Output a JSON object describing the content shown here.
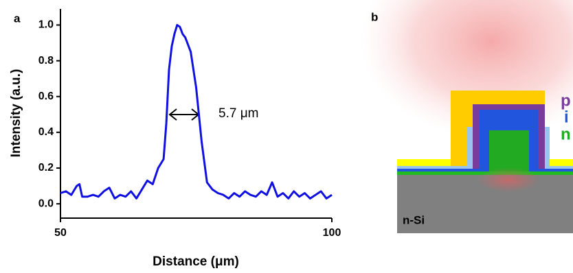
{
  "chart_data": {
    "type": "line",
    "panel_label": "a",
    "x_label": "Distance (μm)",
    "y_label": "Intensity (a.u.)",
    "annotation": "5.7 μm",
    "x": [
      50,
      51,
      52,
      53,
      53.5,
      54,
      55,
      56,
      57,
      58,
      59,
      60,
      61,
      62,
      63,
      64,
      65,
      66,
      67,
      68,
      69,
      69.5,
      70,
      70.5,
      71,
      71.5,
      72,
      72.5,
      73,
      74,
      75,
      76,
      77,
      78,
      79,
      80,
      81,
      82,
      83,
      84,
      85,
      86,
      87,
      88,
      89,
      90,
      91,
      92,
      93,
      94,
      95,
      96,
      97,
      98,
      99,
      100
    ],
    "series": [
      {
        "color": "#1010e0",
        "values": [
          0.06,
          0.07,
          0.05,
          0.1,
          0.11,
          0.04,
          0.04,
          0.05,
          0.04,
          0.07,
          0.09,
          0.03,
          0.05,
          0.04,
          0.07,
          0.03,
          0.08,
          0.13,
          0.11,
          0.2,
          0.25,
          0.45,
          0.75,
          0.88,
          0.95,
          1.0,
          0.99,
          0.95,
          0.93,
          0.85,
          0.65,
          0.35,
          0.12,
          0.08,
          0.06,
          0.05,
          0.03,
          0.06,
          0.04,
          0.07,
          0.05,
          0.04,
          0.07,
          0.05,
          0.12,
          0.04,
          0.06,
          0.03,
          0.07,
          0.04,
          0.06,
          0.03,
          0.05,
          0.07,
          0.03,
          0.05
        ]
      }
    ],
    "xlim": [
      50,
      100
    ],
    "xticks": [
      50,
      100
    ],
    "ylim": [
      -0.08,
      1.09
    ],
    "yticks": [
      {
        "value": 0,
        "label": "0.0"
      },
      0.2,
      0.4,
      0.6,
      0.8,
      {
        "value": 1,
        "label": "1.0"
      }
    ]
  },
  "diagram": {
    "panel_label": "b",
    "layers": [
      "p",
      "i",
      "n"
    ],
    "substrate": "n-Si"
  }
}
